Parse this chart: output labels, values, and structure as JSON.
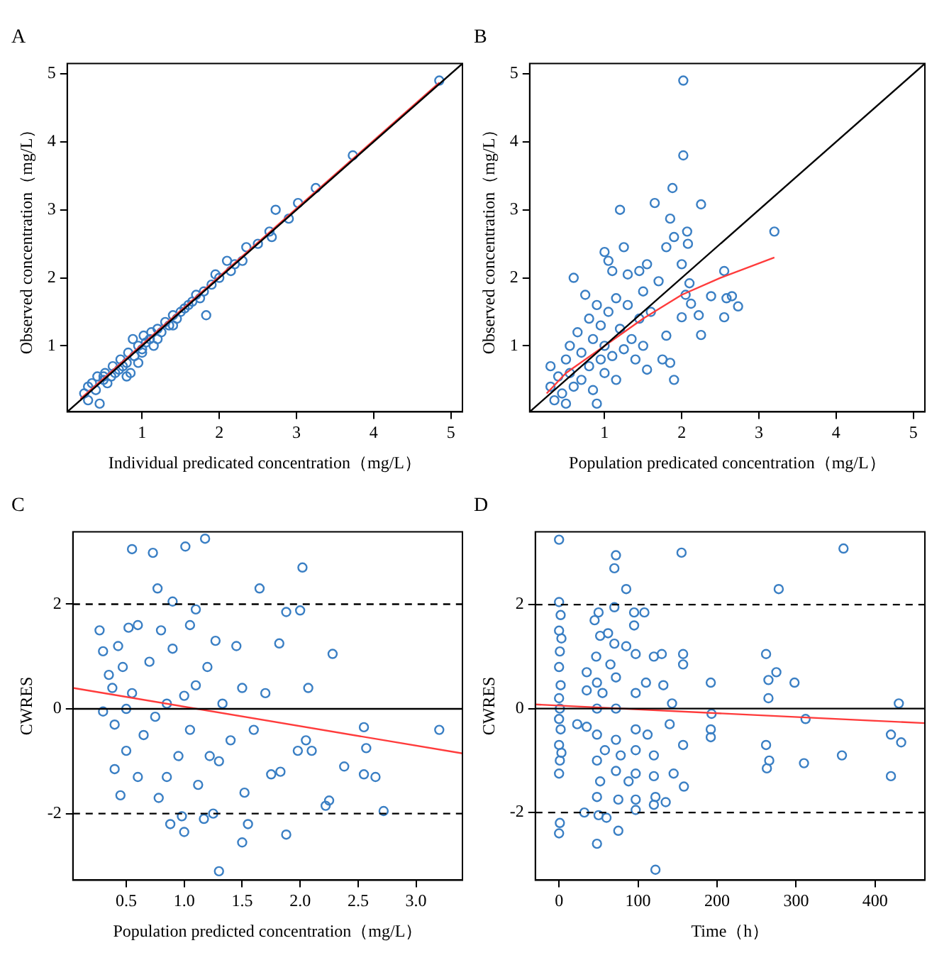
{
  "chart_data": [
    {
      "type": "scatter",
      "title": "A",
      "xlabel": "Individual predicated concentration（mg/L）",
      "ylabel": "Observed concentration（mg/L）",
      "xlim": [
        0.03,
        5.15
      ],
      "ylim": [
        0.03,
        5.15
      ],
      "xticks": [
        1,
        2,
        3,
        4,
        5
      ],
      "yticks": [
        1,
        2,
        3,
        4,
        5
      ],
      "series": [
        {
          "type": "scatter",
          "marker": "circle",
          "color": "#3a7fc4",
          "x": [
            0.25,
            0.3,
            0.35,
            0.4,
            0.42,
            0.45,
            0.5,
            0.52,
            0.55,
            0.6,
            0.62,
            0.65,
            0.7,
            0.72,
            0.75,
            0.8,
            0.82,
            0.85,
            0.88,
            0.9,
            0.95,
            1.0,
            1.02,
            1.05,
            1.1,
            1.12,
            1.15,
            1.2,
            1.25,
            1.3,
            1.35,
            1.4,
            1.45,
            1.5,
            1.55,
            1.6,
            1.65,
            1.7,
            1.75,
            1.8,
            1.83,
            1.9,
            1.95,
            2.0,
            2.1,
            2.15,
            2.2,
            2.3,
            2.35,
            2.5,
            2.65,
            2.68,
            2.73,
            2.9,
            3.02,
            3.25,
            3.73,
            4.85,
            0.3,
            0.5,
            0.8,
            1.0,
            1.2,
            0.95,
            1.4
          ],
          "values": [
            0.3,
            0.2,
            0.45,
            0.35,
            0.55,
            0.15,
            0.5,
            0.6,
            0.45,
            0.55,
            0.7,
            0.6,
            0.65,
            0.8,
            0.7,
            0.75,
            0.9,
            0.6,
            1.1,
            0.85,
            1.0,
            0.95,
            1.15,
            1.05,
            1.1,
            1.2,
            1.0,
            1.25,
            1.2,
            1.35,
            1.3,
            1.45,
            1.4,
            1.5,
            1.55,
            1.6,
            1.65,
            1.75,
            1.7,
            1.8,
            1.45,
            1.9,
            2.05,
            2.0,
            2.25,
            2.1,
            2.2,
            2.25,
            2.45,
            2.5,
            2.68,
            2.6,
            3.0,
            2.87,
            3.1,
            3.32,
            3.8,
            4.9,
            0.4,
            0.55,
            0.55,
            0.9,
            1.1,
            0.75,
            1.3
          ]
        },
        {
          "type": "line",
          "color": "#000000",
          "x": [
            0.03,
            5.15
          ],
          "values": [
            0.03,
            5.15
          ]
        },
        {
          "type": "line",
          "color": "#ff3b3b",
          "x": [
            0.2,
            4.85
          ],
          "values": [
            0.22,
            4.87
          ]
        }
      ]
    },
    {
      "type": "scatter",
      "title": "B",
      "xlabel": "Population predicated concentration（mg/L）",
      "ylabel": "Observed concentration（mg/L）",
      "xlim": [
        0.03,
        5.15
      ],
      "ylim": [
        0.03,
        5.15
      ],
      "xticks": [
        1,
        2,
        3,
        4,
        5
      ],
      "yticks": [
        1,
        2,
        3,
        4,
        5
      ],
      "series": [
        {
          "type": "scatter",
          "marker": "circle",
          "color": "#3a7fc4",
          "x": [
            0.3,
            0.3,
            0.35,
            0.4,
            0.45,
            0.5,
            0.5,
            0.55,
            0.55,
            0.6,
            0.6,
            0.65,
            0.7,
            0.7,
            0.75,
            0.8,
            0.8,
            0.85,
            0.85,
            0.9,
            0.9,
            0.95,
            0.95,
            1.0,
            1.0,
            1.0,
            1.05,
            1.05,
            1.1,
            1.1,
            1.15,
            1.15,
            1.2,
            1.2,
            1.25,
            1.25,
            1.3,
            1.3,
            1.35,
            1.4,
            1.45,
            1.45,
            1.5,
            1.5,
            1.55,
            1.55,
            1.6,
            1.65,
            1.7,
            1.75,
            1.8,
            1.8,
            1.85,
            1.85,
            1.88,
            1.9,
            1.9,
            2.0,
            2.0,
            2.02,
            2.02,
            2.05,
            2.07,
            2.08,
            2.1,
            2.12,
            2.25,
            2.22,
            2.25,
            2.38,
            2.55,
            2.55,
            2.58,
            2.65,
            2.73,
            3.2
          ],
          "values": [
            0.4,
            0.7,
            0.2,
            0.55,
            0.3,
            0.8,
            0.15,
            0.6,
            1.0,
            2.0,
            0.4,
            1.2,
            0.9,
            0.5,
            1.75,
            1.4,
            0.7,
            1.1,
            0.35,
            0.15,
            1.6,
            1.3,
            0.8,
            2.38,
            1.0,
            0.6,
            2.25,
            1.5,
            2.1,
            0.85,
            1.7,
            0.5,
            3.0,
            1.25,
            2.45,
            0.95,
            2.05,
            1.6,
            1.1,
            0.8,
            2.1,
            1.4,
            1.8,
            1.0,
            2.2,
            0.65,
            1.5,
            3.1,
            1.95,
            0.8,
            1.15,
            2.45,
            2.87,
            0.75,
            3.32,
            2.6,
            0.5,
            2.2,
            1.42,
            4.9,
            3.8,
            1.75,
            2.68,
            2.5,
            1.92,
            1.62,
            3.08,
            1.45,
            1.16,
            1.73,
            2.1,
            1.42,
            1.7,
            1.73,
            1.58,
            2.68
          ]
        },
        {
          "type": "line",
          "color": "#000000",
          "x": [
            0.03,
            5.15
          ],
          "values": [
            0.03,
            5.15
          ]
        },
        {
          "type": "line",
          "color": "#ff3b3b",
          "x": [
            0.25,
            0.5,
            1.0,
            1.5,
            2.0,
            2.5,
            3.2
          ],
          "values": [
            0.3,
            0.6,
            1.0,
            1.4,
            1.75,
            2.0,
            2.3
          ]
        }
      ]
    },
    {
      "type": "scatter",
      "title": "C",
      "xlabel": "Population predicted concentration（mg/L）",
      "ylabel": "CWRES",
      "xlim": [
        0.04,
        3.4
      ],
      "ylim": [
        -3.27,
        3.38
      ],
      "xticks": [
        0.5,
        {
          "value": 1,
          "label": "1.0"
        },
        1.5,
        {
          "value": 2,
          "label": "2.0"
        },
        2.5,
        {
          "value": 3,
          "label": "3.0"
        }
      ],
      "yticks": [
        -2,
        0,
        2
      ],
      "ref_lines": [
        {
          "axis": "y",
          "value": 0,
          "color": "#000000",
          "line_style": "solid"
        },
        {
          "axis": "y",
          "value": 2,
          "color": "#000000",
          "line_style": "dashed"
        },
        {
          "axis": "y",
          "value": -2,
          "color": "#000000",
          "line_style": "dashed"
        }
      ],
      "series": [
        {
          "type": "scatter",
          "marker": "circle",
          "color": "#3a7fc4",
          "x": [
            0.27,
            0.3,
            0.3,
            0.35,
            0.38,
            0.4,
            0.4,
            0.43,
            0.45,
            0.47,
            0.5,
            0.5,
            0.52,
            0.55,
            0.55,
            0.6,
            0.6,
            0.65,
            0.7,
            0.73,
            0.75,
            0.77,
            0.78,
            0.8,
            0.85,
            0.85,
            0.88,
            0.9,
            0.9,
            0.95,
            0.98,
            1.0,
            1.0,
            1.01,
            1.05,
            1.05,
            1.1,
            1.1,
            1.12,
            1.17,
            1.18,
            1.2,
            1.22,
            1.25,
            1.27,
            1.3,
            1.3,
            1.33,
            1.4,
            1.45,
            1.5,
            1.5,
            1.52,
            1.55,
            1.6,
            1.65,
            1.7,
            1.75,
            1.82,
            1.83,
            1.88,
            1.88,
            1.98,
            2.0,
            2.02,
            2.05,
            2.07,
            2.1,
            2.22,
            2.25,
            2.28,
            2.38,
            2.55,
            2.55,
            2.57,
            2.65,
            2.72,
            3.2
          ],
          "values": [
            1.5,
            1.1,
            -0.05,
            0.65,
            0.4,
            -0.3,
            -1.15,
            1.2,
            -1.65,
            0.8,
            0.0,
            -0.8,
            1.55,
            3.05,
            0.3,
            -1.3,
            1.6,
            -0.5,
            0.9,
            2.98,
            -0.15,
            2.3,
            -1.7,
            1.5,
            0.1,
            -1.3,
            -2.2,
            2.05,
            1.15,
            -0.9,
            -2.05,
            -2.35,
            0.25,
            3.1,
            1.6,
            -0.4,
            1.9,
            0.45,
            -1.45,
            -2.1,
            3.25,
            0.8,
            -0.9,
            -2.0,
            1.3,
            -3.1,
            -1.0,
            0.1,
            -0.6,
            1.2,
            -2.55,
            0.4,
            -1.6,
            -2.2,
            -0.4,
            2.3,
            0.3,
            -1.25,
            1.25,
            -1.2,
            -2.4,
            1.85,
            -0.8,
            1.88,
            2.7,
            -0.6,
            0.4,
            -0.8,
            -1.85,
            -1.75,
            1.05,
            -1.1,
            -1.25,
            -0.35,
            -0.75,
            -1.3,
            -1.95,
            -0.4
          ]
        },
        {
          "type": "line",
          "color": "#ff3b3b",
          "x": [
            0.04,
            3.4
          ],
          "values": [
            0.4,
            -0.85
          ]
        }
      ]
    },
    {
      "type": "scatter",
      "title": "D",
      "xlabel": "Time（h）",
      "ylabel": "CWRES",
      "xlim": [
        -30,
        463
      ],
      "ylim": [
        -3.3,
        3.4
      ],
      "xticks": [
        0,
        100,
        200,
        300,
        400
      ],
      "yticks": [
        -2,
        0,
        2
      ],
      "ref_lines": [
        {
          "axis": "y",
          "value": 0,
          "color": "#000000",
          "line_style": "solid"
        },
        {
          "axis": "y",
          "value": 2,
          "color": "#000000",
          "line_style": "dashed"
        },
        {
          "axis": "y",
          "value": -2,
          "color": "#000000",
          "line_style": "dashed"
        }
      ],
      "series": [
        {
          "type": "scatter",
          "marker": "circle",
          "color": "#3a7fc4",
          "x": [
            0,
            0,
            2,
            0,
            1,
            0,
            2,
            0,
            1,
            0,
            2,
            0,
            1,
            0,
            1,
            0,
            3,
            3,
            23,
            32,
            35,
            35,
            35,
            45,
            47,
            48,
            48,
            48,
            48,
            48,
            48,
            50,
            50,
            52,
            52,
            55,
            58,
            60,
            62,
            65,
            70,
            72,
            70,
            70,
            72,
            72,
            72,
            72,
            75,
            75,
            78,
            85,
            85,
            88,
            95,
            95,
            97,
            97,
            97,
            97,
            97,
            97,
            97,
            108,
            110,
            112,
            120,
            120,
            120,
            122,
            120,
            122,
            130,
            132,
            135,
            140,
            143,
            145,
            155,
            157,
            157,
            157,
            158,
            192,
            193,
            192,
            192,
            262,
            262,
            263,
            265,
            265,
            266,
            275,
            278,
            298,
            310,
            312,
            358,
            360,
            420,
            420,
            430,
            433
          ],
          "values": [
            3.25,
            2.05,
            1.8,
            1.5,
            1.1,
            0.8,
            0.45,
            0.2,
            0.0,
            -0.2,
            -0.4,
            -0.7,
            -1.0,
            -1.25,
            -2.2,
            -2.4,
            -0.85,
            1.35,
            -0.3,
            -2.0,
            0.7,
            0.35,
            -0.35,
            1.7,
            1.0,
            0.5,
            0.0,
            -0.5,
            -1.0,
            -1.7,
            -2.6,
            1.85,
            -2.05,
            1.4,
            -1.4,
            0.3,
            -0.8,
            -2.1,
            1.45,
            0.85,
            2.7,
            2.95,
            1.95,
            1.25,
            0.6,
            0.0,
            -0.6,
            -1.2,
            -1.75,
            -2.35,
            -0.9,
            2.3,
            1.2,
            -1.4,
            1.85,
            1.6,
            1.05,
            0.3,
            -0.4,
            -0.8,
            -1.25,
            -1.75,
            -1.95,
            1.85,
            0.5,
            -0.5,
            1.0,
            -0.9,
            -1.3,
            -1.7,
            -1.85,
            -3.1,
            1.05,
            0.45,
            -1.8,
            -0.3,
            0.1,
            -1.25,
            3.0,
            1.05,
            0.85,
            -0.7,
            -1.5,
            0.5,
            -0.1,
            -0.4,
            -0.55,
            1.05,
            -0.7,
            -1.15,
            0.55,
            0.2,
            -1.0,
            0.7,
            2.3,
            0.5,
            -1.05,
            -0.2,
            -0.9,
            3.08,
            -0.5,
            -1.3,
            0.1,
            -0.65
          ]
        },
        {
          "type": "line",
          "color": "#ff3b3b",
          "x": [
            -30,
            463
          ],
          "values": [
            0.08,
            -0.28
          ]
        }
      ]
    }
  ]
}
